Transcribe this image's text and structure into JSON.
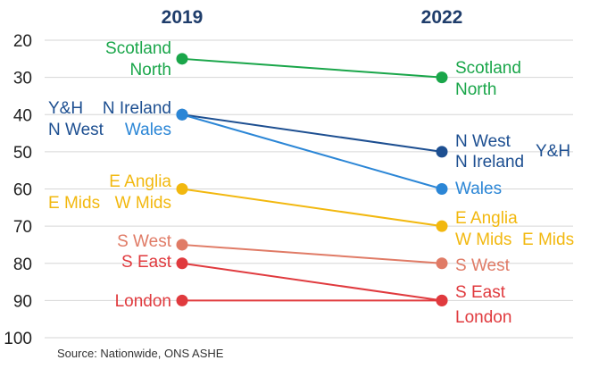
{
  "chart_data": {
    "type": "line",
    "x": [
      "2019",
      "2022"
    ],
    "ylim": [
      100,
      20
    ],
    "y_ticks": [
      20,
      30,
      40,
      50,
      60,
      70,
      80,
      90,
      100
    ],
    "grid": true,
    "series": [
      {
        "name": "Scotland",
        "values": [
          25,
          30
        ],
        "color": "#1aa64a"
      },
      {
        "name": "North",
        "values": [
          25,
          30
        ],
        "color": "#1aa64a"
      },
      {
        "name": "Y&H",
        "values": [
          40,
          50
        ],
        "color": "#1d4f91"
      },
      {
        "name": "N Ireland",
        "values": [
          40,
          50
        ],
        "color": "#1d4f91"
      },
      {
        "name": "N West",
        "values": [
          40,
          50
        ],
        "color": "#1d4f91"
      },
      {
        "name": "Wales",
        "values": [
          40,
          60
        ],
        "color": "#2b86d6"
      },
      {
        "name": "E Anglia",
        "values": [
          60,
          70
        ],
        "color": "#f2b80f"
      },
      {
        "name": "E Mids",
        "values": [
          60,
          70
        ],
        "color": "#f2b80f"
      },
      {
        "name": "W Mids",
        "values": [
          60,
          70
        ],
        "color": "#f2b80f"
      },
      {
        "name": "S West",
        "values": [
          75,
          80
        ],
        "color": "#e07b66"
      },
      {
        "name": "S East",
        "values": [
          80,
          90
        ],
        "color": "#e03a3e"
      },
      {
        "name": "London",
        "values": [
          90,
          90
        ],
        "color": "#e03a3e"
      }
    ]
  },
  "source": "Source: Nationwide, ONS ASHE"
}
